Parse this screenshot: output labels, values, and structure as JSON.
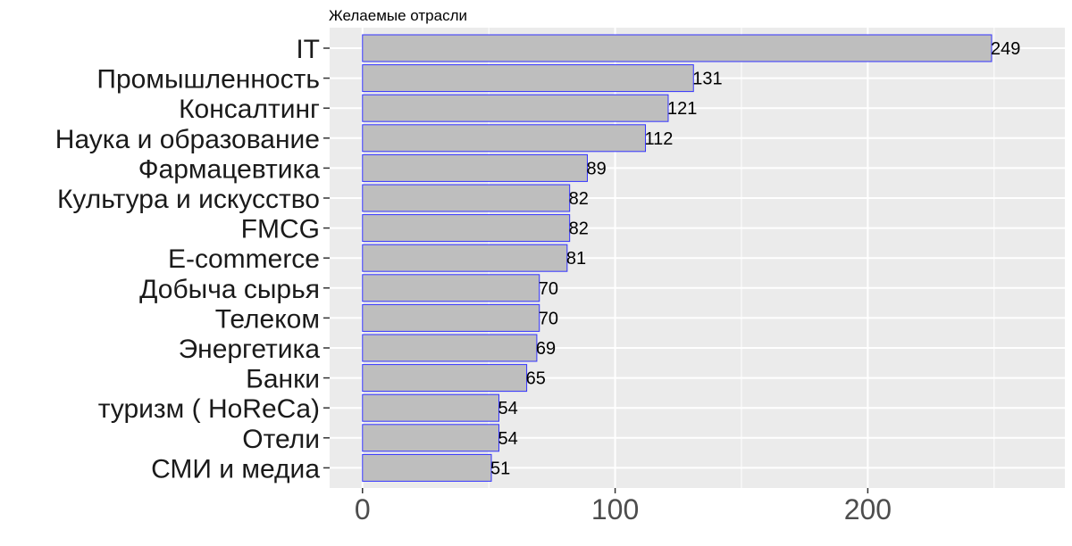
{
  "chart_data": {
    "type": "bar",
    "orientation": "horizontal",
    "title": "Желаемые отрасли",
    "xlabel": "",
    "ylabel": "",
    "categories": [
      "IT",
      "Промышленность",
      "Консалтинг",
      "Наука и образование",
      "Фармацевтика",
      "Культура и искусство",
      "FMCG",
      "E-commerce",
      "Добыча сырья",
      "Телеком",
      "Энергетика",
      "Банки",
      "туризм ( HoReCa)",
      "Отели",
      "СМИ и медиа"
    ],
    "values": [
      249,
      131,
      121,
      112,
      89,
      82,
      82,
      81,
      70,
      70,
      69,
      65,
      54,
      54,
      51
    ],
    "xlim": [
      -13,
      278
    ],
    "xticks": [
      0,
      100,
      200
    ],
    "grid": true,
    "bar_fill": "#bebebe",
    "bar_stroke": "#3333ff",
    "panel_background": "#ebebeb",
    "grid_color": "#ffffff"
  }
}
